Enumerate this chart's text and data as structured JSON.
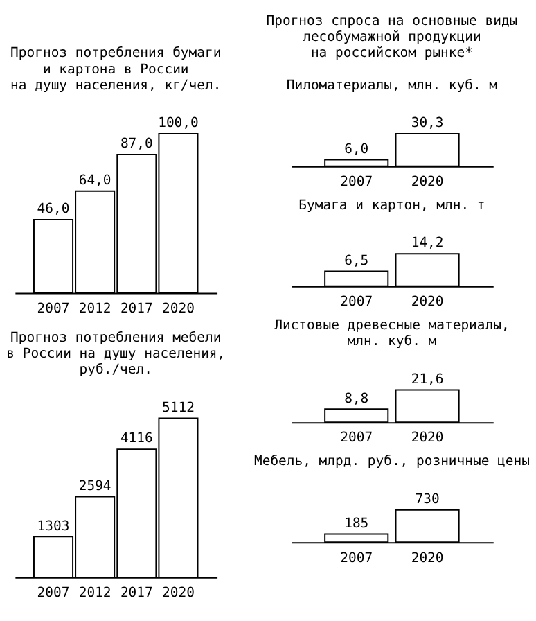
{
  "chart_data": [
    {
      "type": "bar",
      "title": "Прогноз потребления бумаги\nи картона в России\nна душу населения, кг/чел.",
      "categories": [
        "2007",
        "2012",
        "2017",
        "2020"
      ],
      "values": [
        46.0,
        64.0,
        87.0,
        100.0
      ],
      "value_labels": [
        "46,0",
        "64,0",
        "87,0",
        "100,0"
      ],
      "color": "#ffffff",
      "tick_labels": "x",
      "grid": false
    },
    {
      "type": "bar",
      "title": "Прогноз потребления мебели\nв России на душу населения,\nруб./чел.",
      "categories": [
        "2007",
        "2012",
        "2017",
        "2020"
      ],
      "values": [
        1303,
        2594,
        4116,
        5112
      ],
      "value_labels": [
        "1303",
        "2594",
        "4116",
        "5112"
      ],
      "color": "#ffffff",
      "tick_labels": "x",
      "grid": false
    },
    {
      "type": "bar",
      "title": "Прогноз спроса на основные виды\nлесобумажной продукции\nна российском рынке*",
      "subtitle": "Пиломатериалы, млн. куб. м",
      "categories": [
        "2007",
        "2020"
      ],
      "values": [
        6.0,
        30.3
      ],
      "value_labels": [
        "6,0",
        "30,3"
      ],
      "color": "#ffffff",
      "tick_labels": "x",
      "grid": false
    },
    {
      "type": "bar",
      "title": "Бумага и картон, млн. т",
      "categories": [
        "2007",
        "2020"
      ],
      "values": [
        6.5,
        14.2
      ],
      "value_labels": [
        "6,5",
        "14,2"
      ],
      "color": "#ffffff",
      "tick_labels": "x",
      "grid": false
    },
    {
      "type": "bar",
      "title": "Листовые древесные материалы,\nмлн. куб. м",
      "categories": [
        "2007",
        "2020"
      ],
      "values": [
        8.8,
        21.6
      ],
      "value_labels": [
        "8,8",
        "21,6"
      ],
      "color": "#ffffff",
      "tick_labels": "x",
      "grid": false
    },
    {
      "type": "bar",
      "title": "Мебель, млрд. руб., розничные цены",
      "categories": [
        "2007",
        "2020"
      ],
      "values": [
        185,
        730
      ],
      "value_labels": [
        "185",
        "730"
      ],
      "color": "#ffffff",
      "tick_labels": "x",
      "grid": false
    }
  ]
}
